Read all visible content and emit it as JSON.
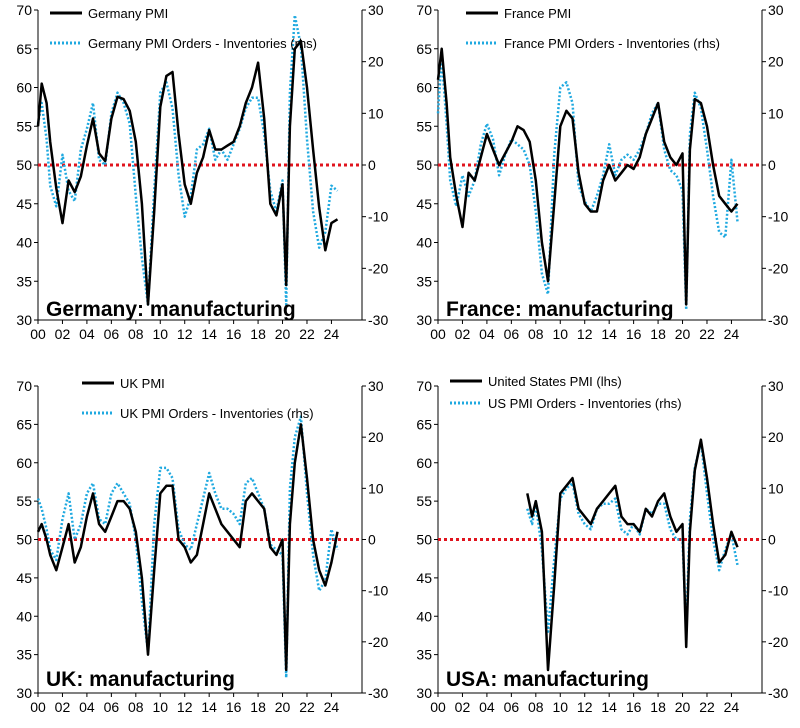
{
  "chart_data": [
    {
      "type": "line",
      "title": "Germany: manufacturing",
      "x_tick_labels": [
        "00",
        "02",
        "04",
        "06",
        "08",
        "10",
        "12",
        "14",
        "16",
        "18",
        "20",
        "22",
        "24"
      ],
      "y_left_ticks": [
        "30",
        "35",
        "40",
        "45",
        "50",
        "55",
        "60",
        "65",
        "70"
      ],
      "y_right_ticks": [
        "-30",
        "-20",
        "-10",
        "0",
        "10",
        "20",
        "30"
      ],
      "ylim_left": [
        30,
        70
      ],
      "ylim_right": [
        -30,
        30
      ],
      "reference_line": 50,
      "series": [
        {
          "name": "Germany PMI",
          "axis": "left",
          "color": "#000000",
          "x": [
            2000,
            2000.3,
            2000.7,
            2001,
            2001.5,
            2002,
            2002.5,
            2003,
            2003.5,
            2004,
            2004.5,
            2005,
            2005.5,
            2006,
            2006.5,
            2007,
            2007.5,
            2008,
            2008.5,
            2009,
            2009.5,
            2010,
            2010.5,
            2011,
            2011.5,
            2012,
            2012.5,
            2013,
            2013.5,
            2014,
            2014.5,
            2015,
            2015.5,
            2016,
            2016.5,
            2017,
            2017.5,
            2018,
            2018.5,
            2019,
            2019.5,
            2020,
            2020.3,
            2020.6,
            2021,
            2021.5,
            2022,
            2022.5,
            2023,
            2023.5,
            2024,
            2024.5
          ],
          "y": [
            55,
            60.5,
            58,
            53,
            47,
            42.5,
            48,
            46.5,
            48.5,
            52.5,
            56,
            51.5,
            50.5,
            56,
            58.8,
            58.5,
            57,
            53,
            45,
            32,
            44,
            57.5,
            61.5,
            62,
            54,
            47.5,
            45,
            49,
            51,
            54.5,
            52,
            52,
            52.5,
            53,
            55,
            58,
            60,
            63.2,
            56,
            45,
            43.5,
            47.5,
            34.5,
            55,
            65,
            66,
            60,
            52,
            44.5,
            39,
            42.5,
            43
          ]
        },
        {
          "name": "Germany PMI Orders - Inventories (rhs)",
          "axis": "right",
          "color": "#1fa9e0",
          "x": [
            2000,
            2000.3,
            2000.7,
            2001,
            2001.5,
            2002,
            2002.5,
            2003,
            2003.5,
            2004,
            2004.5,
            2005,
            2005.5,
            2006,
            2006.5,
            2007,
            2007.5,
            2008,
            2008.5,
            2009,
            2009.5,
            2010,
            2010.5,
            2011,
            2011.5,
            2012,
            2012.5,
            2013,
            2013.5,
            2014,
            2014.5,
            2015,
            2015.5,
            2016,
            2016.5,
            2017,
            2017.5,
            2018,
            2018.5,
            2019,
            2019.5,
            2020,
            2020.3,
            2020.6,
            2021,
            2021.5,
            2022,
            2022.5,
            2023,
            2023.5,
            2024,
            2024.5
          ],
          "y": [
            8,
            12,
            5,
            -4,
            -8,
            2,
            -5,
            -7,
            3,
            7,
            12,
            1,
            0,
            10,
            14,
            12,
            8,
            -6,
            -18,
            -27,
            -5,
            14,
            16,
            11,
            -2,
            -10,
            -6,
            3,
            4,
            7,
            1,
            3,
            1,
            4,
            7,
            11,
            13,
            13,
            6,
            -5,
            -9,
            -3,
            -27,
            14,
            29,
            23,
            5,
            -9,
            -16,
            -13,
            -4,
            -5
          ]
        }
      ],
      "legend": [
        "Germany PMI",
        "Germany PMI Orders - Inventories (rhs)"
      ]
    },
    {
      "type": "line",
      "title": "France: manufacturing",
      "x_tick_labels": [
        "00",
        "02",
        "04",
        "06",
        "08",
        "10",
        "12",
        "14",
        "16",
        "18",
        "20",
        "22",
        "24"
      ],
      "y_left_ticks": [
        "30",
        "35",
        "40",
        "45",
        "50",
        "55",
        "60",
        "65",
        "70"
      ],
      "y_right_ticks": [
        "-30",
        "-20",
        "-10",
        "0",
        "10",
        "20",
        "30"
      ],
      "ylim_left": [
        30,
        70
      ],
      "ylim_right": [
        -30,
        30
      ],
      "reference_line": 50,
      "series": [
        {
          "name": "France PMI",
          "axis": "left",
          "color": "#000000",
          "x": [
            2000,
            2000.3,
            2000.7,
            2001,
            2001.5,
            2002,
            2002.5,
            2003,
            2003.5,
            2004,
            2004.5,
            2005,
            2005.5,
            2006,
            2006.5,
            2007,
            2007.5,
            2008,
            2008.5,
            2009,
            2009.5,
            2010,
            2010.5,
            2011,
            2011.5,
            2012,
            2012.5,
            2013,
            2013.5,
            2014,
            2014.5,
            2015,
            2015.5,
            2016,
            2016.5,
            2017,
            2017.5,
            2018,
            2018.5,
            2019,
            2019.5,
            2020,
            2020.3,
            2020.6,
            2021,
            2021.5,
            2022,
            2022.5,
            2023,
            2023.5,
            2024,
            2024.5
          ],
          "y": [
            61,
            65,
            58,
            51,
            46,
            42,
            49,
            48,
            51,
            54,
            52,
            50,
            51.5,
            53,
            55,
            54.5,
            53,
            48,
            40,
            35,
            45,
            55,
            57,
            56,
            49,
            45,
            44,
            44,
            48,
            50,
            48,
            49,
            50,
            49.5,
            51,
            54,
            56,
            58,
            53,
            51,
            50,
            51.5,
            32,
            52,
            58.5,
            58,
            55,
            50,
            46,
            45,
            44,
            45
          ]
        },
        {
          "name": "France PMI Orders - Inventories (rhs)",
          "axis": "right",
          "color": "#1fa9e0",
          "x": [
            2000,
            2000.3,
            2000.7,
            2001,
            2001.5,
            2002,
            2002.5,
            2003,
            2003.5,
            2004,
            2004.5,
            2005,
            2005.5,
            2006,
            2006.5,
            2007,
            2007.5,
            2008,
            2008.5,
            2009,
            2009.5,
            2010,
            2010.5,
            2011,
            2011.5,
            2012,
            2012.5,
            2013,
            2013.5,
            2014,
            2014.5,
            2015,
            2015.5,
            2016,
            2016.5,
            2017,
            2017.5,
            2018,
            2018.5,
            2019,
            2019.5,
            2020,
            2020.3,
            2020.6,
            2021,
            2021.5,
            2022,
            2022.5,
            2023,
            2023.5,
            2024,
            2024.5
          ],
          "y": [
            10,
            21,
            8,
            -3,
            -8,
            -2,
            -6,
            -3,
            4,
            8,
            5,
            -2,
            2,
            5,
            4,
            3,
            0,
            -9,
            -21,
            -25,
            2,
            15,
            16,
            12,
            -4,
            -7,
            -9,
            -6,
            -2,
            4,
            -2,
            1,
            2,
            1,
            3,
            6,
            10,
            12,
            3,
            -1,
            -2,
            -5,
            -28,
            6,
            14,
            11,
            3,
            -6,
            -13,
            -14,
            1,
            -11
          ]
        }
      ],
      "legend": [
        "France PMI",
        "France PMI Orders - Inventories (rhs)"
      ]
    },
    {
      "type": "line",
      "title": "UK: manufacturing",
      "x_tick_labels": [
        "00",
        "02",
        "04",
        "06",
        "08",
        "10",
        "12",
        "14",
        "16",
        "18",
        "20",
        "22",
        "24"
      ],
      "y_left_ticks": [
        "30",
        "35",
        "40",
        "45",
        "50",
        "55",
        "60",
        "65",
        "70"
      ],
      "y_right_ticks": [
        "-30",
        "-20",
        "-10",
        "0",
        "10",
        "20",
        "30"
      ],
      "ylim_left": [
        30,
        70
      ],
      "ylim_right": [
        -30,
        30
      ],
      "reference_line": 50,
      "series": [
        {
          "name": "UK PMI",
          "axis": "left",
          "color": "#000000",
          "x": [
            2000,
            2000.3,
            2000.7,
            2001,
            2001.5,
            2002,
            2002.5,
            2003,
            2003.5,
            2004,
            2004.5,
            2005,
            2005.5,
            2006,
            2006.5,
            2007,
            2007.5,
            2008,
            2008.5,
            2009,
            2009.5,
            2010,
            2010.5,
            2011,
            2011.5,
            2012,
            2012.5,
            2013,
            2013.5,
            2014,
            2014.5,
            2015,
            2015.5,
            2016,
            2016.5,
            2017,
            2017.5,
            2018,
            2018.5,
            2019,
            2019.5,
            2020,
            2020.3,
            2020.6,
            2021,
            2021.5,
            2022,
            2022.5,
            2023,
            2023.5,
            2024,
            2024.5
          ],
          "y": [
            51,
            52,
            50,
            48,
            46,
            49,
            52,
            47,
            49,
            53,
            56,
            52,
            51,
            53,
            55,
            55,
            54,
            51,
            45,
            35,
            46,
            56,
            57,
            57,
            50,
            49,
            47,
            48,
            52,
            56,
            54,
            52,
            51,
            50,
            49,
            55,
            56,
            55,
            54,
            49,
            48,
            50,
            33,
            52,
            60,
            65,
            58,
            50,
            46,
            44,
            47,
            51
          ]
        },
        {
          "name": "UK PMI Orders - Inventories (rhs)",
          "axis": "right",
          "color": "#1fa9e0",
          "x": [
            2000,
            2000.3,
            2000.7,
            2001,
            2001.5,
            2002,
            2002.5,
            2003,
            2003.5,
            2004,
            2004.5,
            2005,
            2005.5,
            2006,
            2006.5,
            2007,
            2007.5,
            2008,
            2008.5,
            2009,
            2009.5,
            2010,
            2010.5,
            2011,
            2011.5,
            2012,
            2012.5,
            2013,
            2013.5,
            2014,
            2014.5,
            2015,
            2015.5,
            2016,
            2016.5,
            2017,
            2017.5,
            2018,
            2018.5,
            2019,
            2019.5,
            2020,
            2020.3,
            2020.6,
            2021,
            2021.5,
            2022,
            2022.5,
            2023,
            2023.5,
            2024,
            2024.5
          ],
          "y": [
            8,
            6,
            2,
            -2,
            -4,
            4,
            9,
            0,
            3,
            9,
            11,
            4,
            3,
            9,
            11,
            9,
            7,
            0,
            -12,
            -22,
            3,
            14,
            14,
            12,
            2,
            -1,
            -2,
            3,
            8,
            13,
            9,
            6,
            6,
            5,
            3,
            11,
            12,
            9,
            6,
            -1,
            -2,
            -3,
            -27,
            10,
            20,
            24,
            9,
            -3,
            -10,
            -8,
            2,
            -2
          ]
        }
      ],
      "legend": [
        "UK PMI",
        "UK PMI Orders - Inventories (rhs)"
      ]
    },
    {
      "type": "line",
      "title": "USA: manufacturing",
      "x_tick_labels": [
        "00",
        "02",
        "04",
        "06",
        "08",
        "10",
        "12",
        "14",
        "16",
        "18",
        "20",
        "22",
        "24"
      ],
      "y_left_ticks": [
        "30",
        "35",
        "40",
        "45",
        "50",
        "55",
        "60",
        "65",
        "70"
      ],
      "y_right_ticks": [
        "-30",
        "-20",
        "-10",
        "0",
        "10",
        "20",
        "30"
      ],
      "ylim_left": [
        30,
        70
      ],
      "ylim_right": [
        -30,
        30
      ],
      "reference_line": 50,
      "series": [
        {
          "name": "United States PMI (lhs)",
          "axis": "left",
          "color": "#000000",
          "x": [
            2007.3,
            2007.7,
            2008,
            2008.5,
            2009,
            2009.5,
            2010,
            2010.5,
            2011,
            2011.5,
            2012,
            2012.5,
            2013,
            2013.5,
            2014,
            2014.5,
            2015,
            2015.5,
            2016,
            2016.5,
            2017,
            2017.5,
            2018,
            2018.5,
            2019,
            2019.5,
            2020,
            2020.3,
            2020.6,
            2021,
            2021.5,
            2022,
            2022.5,
            2023,
            2023.5,
            2024,
            2024.5
          ],
          "y": [
            56,
            53,
            55,
            51,
            33,
            44,
            56,
            57,
            58,
            54,
            53,
            52,
            54,
            55,
            56,
            57,
            53,
            52,
            52,
            51,
            54,
            53,
            55,
            56,
            53,
            51,
            52,
            36,
            51,
            59,
            63,
            58,
            52,
            47,
            48,
            51,
            49
          ]
        },
        {
          "name": "US PMI Orders - Inventories (rhs)",
          "axis": "right",
          "color": "#1fa9e0",
          "x": [
            2007.3,
            2007.7,
            2008,
            2008.5,
            2009,
            2009.5,
            2010,
            2010.5,
            2011,
            2011.5,
            2012,
            2012.5,
            2013,
            2013.5,
            2014,
            2014.5,
            2015,
            2015.5,
            2016,
            2016.5,
            2017,
            2017.5,
            2018,
            2018.5,
            2019,
            2019.5,
            2020,
            2020.3,
            2020.6,
            2021,
            2021.5,
            2022,
            2022.5,
            2023,
            2023.5,
            2024,
            2024.5
          ],
          "y": [
            6,
            3,
            7,
            -2,
            -18,
            -4,
            8,
            10,
            11,
            5,
            3,
            2,
            6,
            7,
            7,
            8,
            2,
            1,
            3,
            1,
            6,
            5,
            7,
            7,
            2,
            0,
            0,
            -18,
            4,
            14,
            19,
            9,
            0,
            -6,
            -2,
            1,
            -5
          ]
        }
      ],
      "legend": [
        "United States PMI (lhs)",
        "US PMI Orders - Inventories (rhs)"
      ]
    }
  ]
}
